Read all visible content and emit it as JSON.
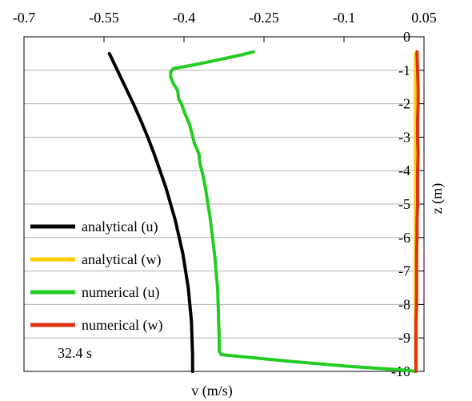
{
  "chart_data": {
    "type": "line",
    "title": "",
    "xlabel": "v (m/s)",
    "ylabel": "z (m)",
    "xlim": [
      -0.7,
      0.05
    ],
    "ylim": [
      -10,
      0
    ],
    "x_ticks": [
      "-0.7",
      "-0.55",
      "-0.4",
      "-0.25",
      "-0.1",
      "0.05"
    ],
    "y_ticks": [
      "0",
      "-1",
      "-2",
      "-3",
      "-4",
      "-5",
      "-6",
      "-7",
      "-8",
      "-9",
      "-10"
    ],
    "grid": "horizontal",
    "legend_position": "left",
    "annotation": "32.4 s",
    "series": [
      {
        "name": "analytical (u)",
        "color": "#000000",
        "points": [
          [
            -0.54,
            -0.5
          ],
          [
            -0.525,
            -1.0
          ],
          [
            -0.51,
            -1.5
          ],
          [
            -0.495,
            -2.0
          ],
          [
            -0.481,
            -2.5
          ],
          [
            -0.468,
            -3.0
          ],
          [
            -0.456,
            -3.5
          ],
          [
            -0.445,
            -4.0
          ],
          [
            -0.434,
            -4.5
          ],
          [
            -0.425,
            -5.0
          ],
          [
            -0.416,
            -5.5
          ],
          [
            -0.409,
            -6.0
          ],
          [
            -0.402,
            -6.5
          ],
          [
            -0.397,
            -7.0
          ],
          [
            -0.392,
            -7.5
          ],
          [
            -0.389,
            -8.0
          ],
          [
            -0.386,
            -8.5
          ],
          [
            -0.385,
            -9.0
          ],
          [
            -0.384,
            -9.5
          ],
          [
            -0.384,
            -10.0
          ]
        ]
      },
      {
        "name": "analytical (w)",
        "color": "#ffcc00",
        "points": [
          [
            0.034,
            -0.5
          ],
          [
            0.034,
            -2.0
          ],
          [
            0.034,
            -4.0
          ],
          [
            0.034,
            -6.0
          ],
          [
            0.034,
            -8.0
          ],
          [
            0.034,
            -10.0
          ]
        ]
      },
      {
        "name": "numerical (u)",
        "color": "#22cc22",
        "points": [
          [
            -0.27,
            -0.45
          ],
          [
            -0.295,
            -0.55
          ],
          [
            -0.34,
            -0.7
          ],
          [
            -0.385,
            -0.85
          ],
          [
            -0.42,
            -0.95
          ],
          [
            -0.425,
            -1.05
          ],
          [
            -0.425,
            -1.2
          ],
          [
            -0.42,
            -1.4
          ],
          [
            -0.412,
            -1.6
          ],
          [
            -0.41,
            -1.85
          ],
          [
            -0.405,
            -2.0
          ],
          [
            -0.398,
            -2.3
          ],
          [
            -0.39,
            -2.6
          ],
          [
            -0.385,
            -2.9
          ],
          [
            -0.38,
            -3.2
          ],
          [
            -0.372,
            -3.5
          ],
          [
            -0.37,
            -3.8
          ],
          [
            -0.365,
            -4.1
          ],
          [
            -0.36,
            -4.5
          ],
          [
            -0.356,
            -4.9
          ],
          [
            -0.352,
            -5.3
          ],
          [
            -0.348,
            -5.8
          ],
          [
            -0.345,
            -6.2
          ],
          [
            -0.342,
            -6.6
          ],
          [
            -0.34,
            -7.0
          ],
          [
            -0.337,
            -7.5
          ],
          [
            -0.336,
            -8.0
          ],
          [
            -0.335,
            -8.5
          ],
          [
            -0.334,
            -9.0
          ],
          [
            -0.334,
            -9.4
          ],
          [
            -0.33,
            -9.5
          ],
          [
            -0.2,
            -9.7
          ],
          [
            -0.09,
            -9.85
          ],
          [
            0.02,
            -9.97
          ],
          [
            0.034,
            -10.0
          ]
        ]
      },
      {
        "name": "numerical (w)",
        "color": "#dd3311",
        "points": [
          [
            0.037,
            -0.45
          ],
          [
            0.038,
            -1.0
          ],
          [
            0.039,
            -1.5
          ],
          [
            0.039,
            -2.0
          ],
          [
            0.038,
            -2.5
          ],
          [
            0.038,
            -3.0
          ],
          [
            0.039,
            -3.5
          ],
          [
            0.038,
            -4.0
          ],
          [
            0.038,
            -4.5
          ],
          [
            0.038,
            -5.0
          ],
          [
            0.037,
            -5.5
          ],
          [
            0.037,
            -6.0
          ],
          [
            0.036,
            -6.5
          ],
          [
            0.036,
            -7.0
          ],
          [
            0.036,
            -7.5
          ],
          [
            0.036,
            -8.0
          ],
          [
            0.035,
            -8.5
          ],
          [
            0.035,
            -9.0
          ],
          [
            0.035,
            -9.5
          ],
          [
            0.035,
            -10.0
          ]
        ]
      }
    ]
  }
}
